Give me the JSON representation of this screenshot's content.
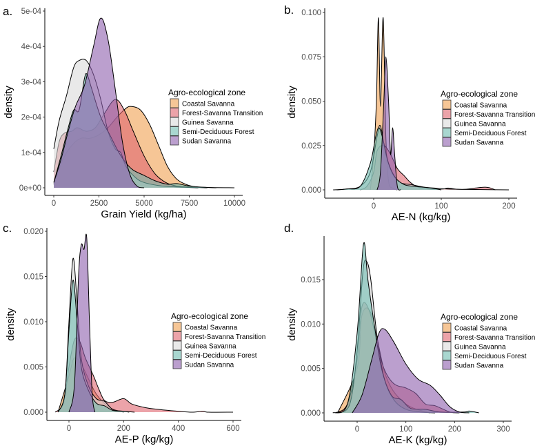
{
  "colors": {
    "Coastal Savanna": "#F0A050",
    "Forest-Savanna Transition": "#E06670",
    "Guinea Savanna": "#DADADA",
    "Semi-Deciduous Forest": "#70BDB0",
    "Sudan Savanna": "#8E5FAE"
  },
  "chart_data": [
    {
      "panel_label": "a.",
      "type": "area",
      "title": "",
      "xlabel": "Grain Yield (kg/ha)",
      "ylabel": "density",
      "xticks": [
        0,
        2500,
        5000,
        7500,
        10000
      ],
      "xtick_labels": [
        "0",
        "2500",
        "5000",
        "7500",
        "10000"
      ],
      "yticks": [
        0,
        0.0001,
        0.0002,
        0.0003,
        0.0004,
        0.0005
      ],
      "ytick_labels": [
        "0e+00",
        "1e-04",
        "2e-04",
        "3e-04",
        "4e-04",
        "5e-04"
      ],
      "legend_title": "Agro-ecological zone",
      "legend_placement": "right",
      "series": [
        {
          "name": "Coastal Savanna",
          "x": [
            0,
            500,
            1000,
            1500,
            2000,
            2500,
            3000,
            3500,
            4000,
            4300,
            4800,
            5300,
            5800,
            6300,
            6800,
            7300,
            7800,
            8500,
            10000
          ],
          "y": [
            1e-05,
            8e-05,
            0.00012,
            0.00014,
            0.00014,
            0.00015,
            0.00017,
            0.0002,
            0.000225,
            0.00023,
            0.00022,
            0.00018,
            0.00012,
            6e-05,
            2.5e-05,
            1e-05,
            3e-06,
            1e-06,
            0
          ]
        },
        {
          "name": "Forest-Savanna Transition",
          "x": [
            0,
            300,
            600,
            1000,
            1300,
            1800,
            2300,
            2800,
            3400,
            3900,
            4400,
            5000,
            5600,
            6200,
            6800,
            7500,
            8500
          ],
          "y": [
            4.5e-05,
            0.00013,
            0.000155,
            0.00016,
            0.00017,
            0.00016,
            0.00017,
            0.00021,
            0.00025,
            0.00022,
            0.00016,
            9e-05,
            4e-05,
            1.5e-05,
            5e-06,
            2e-06,
            0
          ]
        },
        {
          "name": "Guinea Savanna",
          "x": [
            0,
            300,
            700,
            1100,
            1400,
            1800,
            2200,
            2600,
            3000,
            3400,
            3700,
            4000,
            4500,
            5000,
            6000,
            7000,
            8000
          ],
          "y": [
            0.00011,
            0.00019,
            0.00026,
            0.00034,
            0.00036,
            0.00036,
            0.00032,
            0.00025,
            0.00016,
            0.00011,
            0.0001,
            6e-05,
            3e-05,
            1.5e-05,
            5e-06,
            2e-06,
            0
          ]
        },
        {
          "name": "Semi-Deciduous Forest",
          "x": [
            0,
            400,
            800,
            1100,
            1400,
            1700,
            1850,
            2100,
            2600,
            3100,
            3600,
            4000,
            4400,
            5000,
            5600,
            6300,
            6800,
            7500,
            8500,
            9000
          ],
          "y": [
            1.5e-05,
            9e-05,
            0.00017,
            0.00022,
            0.00022,
            0.00031,
            0.00032,
            0.00028,
            0.0002,
            0.00015,
            0.0001,
            7e-05,
            5e-05,
            3.5e-05,
            2e-05,
            1e-05,
            1.2e-05,
            5e-06,
            1e-06,
            0
          ]
        },
        {
          "name": "Sudan Savanna",
          "x": [
            0,
            400,
            800,
            1200,
            1700,
            2200,
            2600,
            3000,
            3400,
            3800,
            4200,
            4600,
            5000
          ],
          "y": [
            1.5e-05,
            8e-05,
            0.00016,
            0.00023,
            0.00029,
            0.0004,
            0.00048,
            0.00042,
            0.00028,
            0.00013,
            4e-05,
            5e-06,
            0
          ]
        }
      ]
    },
    {
      "panel_label": "b.",
      "type": "area",
      "title": "",
      "xlabel": "AE-N (kg/kg)",
      "ylabel": "density",
      "xticks": [
        0,
        100,
        200
      ],
      "xtick_labels": [
        "0",
        "100",
        "200"
      ],
      "yticks": [
        0,
        0.025,
        0.05,
        0.075,
        0.1
      ],
      "ytick_labels": [
        "0.000",
        "0.025",
        "0.050",
        "0.075",
        "0.100"
      ],
      "legend_title": "Agro-ecological zone",
      "legend_placement": "right",
      "series": [
        {
          "name": "Coastal Savanna",
          "x": [
            -5,
            0,
            4,
            7,
            10,
            14,
            18,
            22,
            28,
            35
          ],
          "y": [
            0,
            0.02,
            0.05,
            0.097,
            0.047,
            0.097,
            0.03,
            0.005,
            0.001,
            0
          ]
        },
        {
          "name": "Forest-Savanna Transition",
          "x": [
            -20,
            -10,
            0,
            5,
            15,
            25,
            35,
            45,
            55,
            70,
            100,
            110,
            130,
            165,
            180
          ],
          "y": [
            0,
            0.002,
            0.01,
            0.022,
            0.025,
            0.02,
            0.012,
            0.008,
            0.004,
            0.001,
            0.0003,
            0.001,
            0.0002,
            0.0015,
            0
          ]
        },
        {
          "name": "Guinea Savanna",
          "x": [
            -60,
            -40,
            -20,
            -5,
            5,
            10,
            18,
            28,
            40,
            55,
            75,
            90,
            110,
            150,
            200
          ],
          "y": [
            0,
            0.0005,
            0.002,
            0.01,
            0.03,
            0.036,
            0.02,
            0.009,
            0.004,
            0.003,
            0.0015,
            0.001,
            0.0005,
            0.0002,
            0
          ]
        },
        {
          "name": "Semi-Deciduous Forest",
          "x": [
            -55,
            -40,
            -20,
            -5,
            3,
            8,
            14,
            22,
            32,
            45,
            60,
            85,
            100
          ],
          "y": [
            0,
            0.0005,
            0.002,
            0.015,
            0.03,
            0.035,
            0.028,
            0.015,
            0.007,
            0.003,
            0.002,
            0.001,
            0
          ]
        },
        {
          "name": "Sudan Savanna",
          "x": [
            5,
            10,
            15,
            18,
            22,
            25,
            28,
            31,
            35,
            40
          ],
          "y": [
            0,
            0.01,
            0.05,
            0.075,
            0.05,
            0.02,
            0.035,
            0.02,
            0.002,
            0
          ]
        }
      ]
    },
    {
      "panel_label": "c.",
      "type": "area",
      "title": "",
      "xlabel": "AE-P (kg/kg)",
      "ylabel": "density",
      "xticks": [
        0,
        200,
        400,
        600
      ],
      "xtick_labels": [
        "0",
        "200",
        "400",
        "600"
      ],
      "yticks": [
        0,
        0.005,
        0.01,
        0.015,
        0.02
      ],
      "ytick_labels": [
        "0.000",
        "0.005",
        "0.010",
        "0.015",
        "0.020"
      ],
      "legend_title": "Agro-ecological zone",
      "legend_placement": "right",
      "series": [
        {
          "name": "Coastal Savanna",
          "x": [
            -40,
            0,
            20,
            50,
            100,
            150,
            200
          ],
          "y": [
            0,
            0.004,
            0.006,
            0.005,
            0.002,
            0.0005,
            0
          ]
        },
        {
          "name": "Forest-Savanna Transition",
          "x": [
            -50,
            -20,
            0,
            20,
            40,
            60,
            90,
            110,
            130,
            160,
            200,
            230,
            280,
            330,
            400,
            450,
            490,
            510,
            600
          ],
          "y": [
            0,
            0.001,
            0.005,
            0.008,
            0.0078,
            0.006,
            0.004,
            0.0025,
            0.0013,
            0.0011,
            0.0015,
            0.0009,
            0.0005,
            0.0003,
            0.0001,
            0,
            0.0001,
            0,
            0
          ]
        },
        {
          "name": "Guinea Savanna",
          "x": [
            -40,
            -15,
            0,
            15,
            30,
            45,
            70,
            100,
            130,
            160,
            200,
            220
          ],
          "y": [
            0,
            0.002,
            0.01,
            0.017,
            0.012,
            0.006,
            0.003,
            0.0015,
            0.0012,
            0.0003,
            0.0001,
            0
          ]
        },
        {
          "name": "Semi-Deciduous Forest",
          "x": [
            -40,
            -15,
            0,
            15,
            30,
            45,
            70,
            100,
            130,
            160,
            200,
            240
          ],
          "y": [
            0,
            0.002,
            0.009,
            0.0146,
            0.01,
            0.005,
            0.0025,
            0.001,
            0.0007,
            0.0002,
            0.0001,
            0
          ]
        },
        {
          "name": "Sudan Savanna",
          "x": [
            0,
            20,
            35,
            45,
            55,
            65,
            75,
            85,
            95
          ],
          "y": [
            0,
            0.003,
            0.015,
            0.0185,
            0.018,
            0.0193,
            0.01,
            0.002,
            0
          ]
        }
      ]
    },
    {
      "panel_label": "d.",
      "type": "area",
      "title": "",
      "xlabel": "AE-K (kg/kg)",
      "ylabel": "density",
      "xticks": [
        0,
        100,
        200,
        300
      ],
      "xtick_labels": [
        "0",
        "100",
        "200",
        "300"
      ],
      "yticks": [
        0,
        0.005,
        0.01,
        0.015
      ],
      "ytick_labels": [
        "0.000",
        "0.005",
        "0.010",
        "0.015"
      ],
      "legend_title": "Agro-ecological zone",
      "legend_placement": "right",
      "series": [
        {
          "name": "Coastal Savanna",
          "x": [
            -40,
            0,
            10,
            30,
            60,
            100,
            150
          ],
          "y": [
            0,
            0.005,
            0.011,
            0.011,
            0.004,
            0.001,
            0
          ]
        },
        {
          "name": "Forest-Savanna Transition",
          "x": [
            -45,
            -20,
            0,
            10,
            25,
            40,
            55,
            75,
            100,
            120,
            140,
            160,
            190,
            210
          ],
          "y": [
            0,
            0.001,
            0.006,
            0.012,
            0.0115,
            0.008,
            0.005,
            0.0033,
            0.0028,
            0.0022,
            0.001,
            0.0008,
            0.0001,
            0
          ]
        },
        {
          "name": "Guinea Savanna",
          "x": [
            -40,
            -15,
            0,
            12,
            20,
            28,
            40,
            55,
            75,
            100,
            130,
            160
          ],
          "y": [
            0,
            0.001,
            0.007,
            0.016,
            0.017,
            0.015,
            0.009,
            0.004,
            0.0015,
            0.0004,
            0.0001,
            0
          ]
        },
        {
          "name": "Semi-Deciduous Forest",
          "x": [
            -50,
            -20,
            0,
            13,
            22,
            35,
            50,
            70,
            90,
            110,
            140,
            170,
            220,
            230,
            250
          ],
          "y": [
            0,
            0.001,
            0.009,
            0.019,
            0.015,
            0.01,
            0.005,
            0.002,
            0.0015,
            0.0005,
            0.0004,
            0.0001,
            0.0001,
            0.0002,
            0
          ]
        },
        {
          "name": "Sudan Savanna",
          "x": [
            -10,
            10,
            30,
            45,
            57,
            75,
            100,
            125,
            150,
            170,
            190,
            210,
            230
          ],
          "y": [
            0,
            0.002,
            0.006,
            0.009,
            0.0094,
            0.008,
            0.0055,
            0.0038,
            0.0031,
            0.002,
            0.0007,
            0.0001,
            0
          ]
        }
      ]
    }
  ]
}
